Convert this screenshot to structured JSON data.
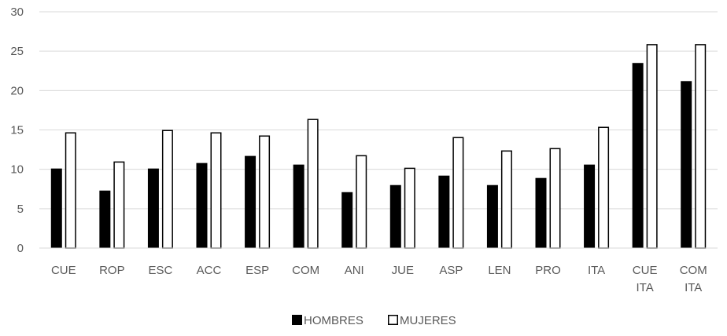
{
  "chart_data": {
    "type": "bar",
    "categories": [
      [
        "CUE"
      ],
      [
        "ROP"
      ],
      [
        "ESC"
      ],
      [
        "ACC"
      ],
      [
        "ESP"
      ],
      [
        "COM"
      ],
      [
        "ANI"
      ],
      [
        "JUE"
      ],
      [
        "ASP"
      ],
      [
        "LEN"
      ],
      [
        "PRO"
      ],
      [
        "ITA"
      ],
      [
        "CUE",
        "ITA"
      ],
      [
        "COM",
        "ITA"
      ]
    ],
    "series": [
      {
        "name": "HOMBRES",
        "color": "#000000",
        "fill": "solid",
        "values": [
          10.1,
          7.3,
          10.1,
          10.8,
          11.7,
          10.6,
          7.1,
          8.0,
          9.2,
          8.0,
          8.9,
          10.6,
          23.5,
          21.2
        ]
      },
      {
        "name": "MUJERES",
        "color": "#ffffff",
        "fill": "outline",
        "values": [
          14.7,
          11.0,
          15.0,
          14.7,
          14.3,
          16.4,
          11.8,
          10.2,
          14.1,
          12.4,
          12.7,
          15.4,
          25.9,
          25.9
        ]
      }
    ],
    "yticks": [
      "0",
      "5",
      "10",
      "15",
      "20",
      "25",
      "30"
    ],
    "ylim": [
      0,
      30
    ],
    "grid": true,
    "legend": "bottom",
    "title": "",
    "xlabel": "",
    "ylabel": ""
  }
}
